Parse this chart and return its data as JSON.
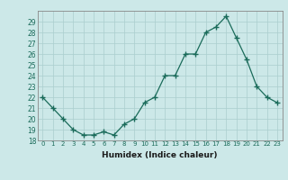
{
  "x": [
    0,
    1,
    2,
    3,
    4,
    5,
    6,
    7,
    8,
    9,
    10,
    11,
    12,
    13,
    14,
    15,
    16,
    17,
    18,
    19,
    20,
    21,
    22,
    23
  ],
  "y": [
    22.0,
    21.0,
    20.0,
    19.0,
    18.5,
    18.5,
    18.8,
    18.5,
    19.5,
    20.0,
    21.5,
    22.0,
    24.0,
    24.0,
    26.0,
    26.0,
    28.0,
    28.5,
    29.5,
    27.5,
    25.5,
    23.0,
    22.0,
    21.5
  ],
  "line_color": "#1a6b5a",
  "marker": "+",
  "bg_color": "#cce8e8",
  "grid_color": "#aacece",
  "xlabel": "Humidex (Indice chaleur)",
  "ylim": [
    18,
    30
  ],
  "yticks": [
    18,
    19,
    20,
    21,
    22,
    23,
    24,
    25,
    26,
    27,
    28,
    29
  ],
  "xticks": [
    0,
    1,
    2,
    3,
    4,
    5,
    6,
    7,
    8,
    9,
    10,
    11,
    12,
    13,
    14,
    15,
    16,
    17,
    18,
    19,
    20,
    21,
    22,
    23
  ],
  "xlim": [
    -0.5,
    23.5
  ]
}
